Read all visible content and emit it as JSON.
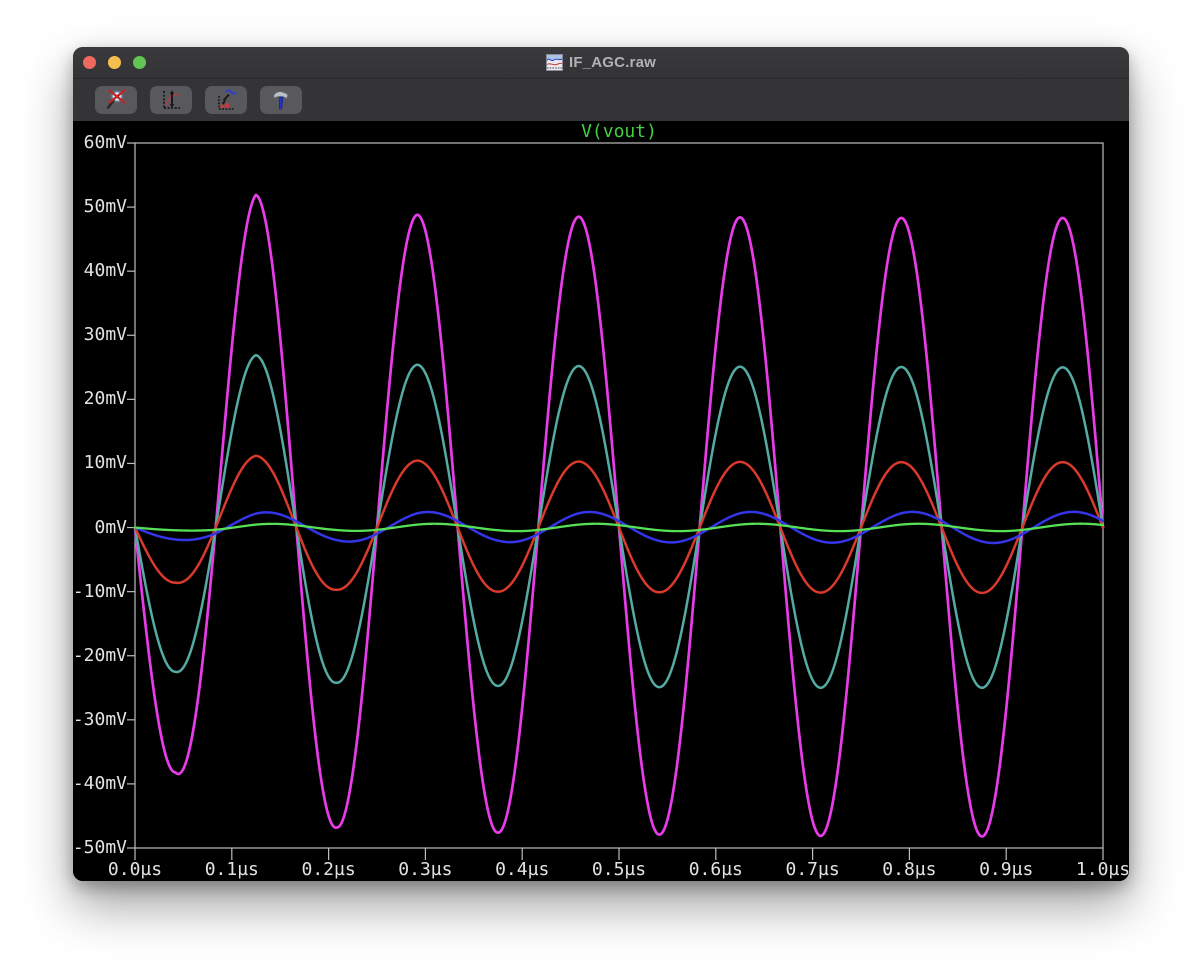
{
  "window": {
    "title": "IF_AGC.raw",
    "traffic_lights": {
      "close_color": "#ED6A5E",
      "minimize_color": "#F5BF4F",
      "zoom_color": "#62C554"
    }
  },
  "toolbar": {
    "buttons": [
      {
        "icon": "zoom-to-fit-disabled-icon"
      },
      {
        "icon": "autorange-y-axis-icon"
      },
      {
        "icon": "plot-settings-icon"
      },
      {
        "icon": "control-panel-hammer-icon"
      }
    ]
  },
  "chart_data": {
    "type": "line",
    "title": "V(vout)",
    "title_color": "#3FD23F",
    "background": "#000000",
    "frame_color": "#BEBEBE",
    "axis_text_color": "#E2E2E2",
    "grid": false,
    "legend_position": "top-center",
    "x_unit": "µs",
    "y_unit": "mV",
    "xlim": [
      0,
      1
    ],
    "ylim": [
      -50,
      60
    ],
    "x_ticks": {
      "values": [
        0,
        0.1,
        0.2,
        0.3,
        0.4,
        0.5,
        0.6,
        0.7,
        0.8,
        0.9,
        1.0
      ],
      "labels": [
        "0.0µs",
        "0.1µs",
        "0.2µs",
        "0.3µs",
        "0.4µs",
        "0.5µs",
        "0.6µs",
        "0.7µs",
        "0.8µs",
        "0.9µs",
        "1.0µs"
      ]
    },
    "y_ticks": {
      "values": [
        60,
        50,
        40,
        30,
        20,
        10,
        0,
        -10,
        -20,
        -30,
        -40,
        -50
      ],
      "labels": [
        "60mV",
        "50mV",
        "40mV",
        "30mV",
        "20mV",
        "10mV",
        "0mV",
        "-10mV",
        "-20mV",
        "-30mV",
        "-40mV",
        "-50mV"
      ]
    },
    "frequency_MHz": 6,
    "waveform": "v(t) = -A(t)*sin(2*pi*f*t - lag)",
    "phase_lag_ramp_us": 0.08,
    "envelope_times_us": [
      0.04167,
      0.125,
      0.20833,
      0.29167,
      0.375,
      0.45833,
      0.54167,
      0.625,
      0.70833,
      0.79167,
      0.875,
      0.95833
    ],
    "series": [
      {
        "name": "V(vout) trace magenta",
        "color": "#E83CE8",
        "stroke_width": 2.7,
        "phase_lag_deg": 0,
        "amplitudes_mV": [
          38.2,
          51.9,
          46.8,
          48.8,
          47.6,
          48.5,
          47.9,
          48.4,
          48.1,
          48.3,
          48.2,
          48.3
        ]
      },
      {
        "name": "V(vout) trace teal",
        "color": "#55ABA4",
        "stroke_width": 2.5,
        "phase_lag_deg": 0,
        "amplitudes_mV": [
          22.5,
          26.9,
          24.2,
          25.4,
          24.7,
          25.2,
          24.9,
          25.1,
          25.0,
          25.05,
          25.0,
          25.0
        ]
      },
      {
        "name": "V(vout) trace red",
        "color": "#DA3A2B",
        "stroke_width": 2.5,
        "phase_lag_deg": 0,
        "amplitudes_mV": [
          8.6,
          11.2,
          9.7,
          10.45,
          10.0,
          10.3,
          10.1,
          10.25,
          10.15,
          10.2,
          10.2,
          10.2
        ]
      },
      {
        "name": "V(vout) trace blue",
        "color": "#3434E8",
        "stroke_width": 2.5,
        "phase_lag_deg": 25,
        "amplitudes_mV": [
          1.9,
          2.4,
          2.15,
          2.45,
          2.25,
          2.45,
          2.3,
          2.45,
          2.35,
          2.45,
          2.4,
          2.45
        ]
      },
      {
        "name": "V(vout) trace green",
        "color": "#55E055",
        "stroke_width": 2.3,
        "phase_lag_deg": 40,
        "amplitudes_mV": [
          0.45,
          0.6,
          0.5,
          0.6,
          0.55,
          0.6,
          0.55,
          0.6,
          0.55,
          0.6,
          0.55,
          0.6
        ]
      }
    ]
  }
}
